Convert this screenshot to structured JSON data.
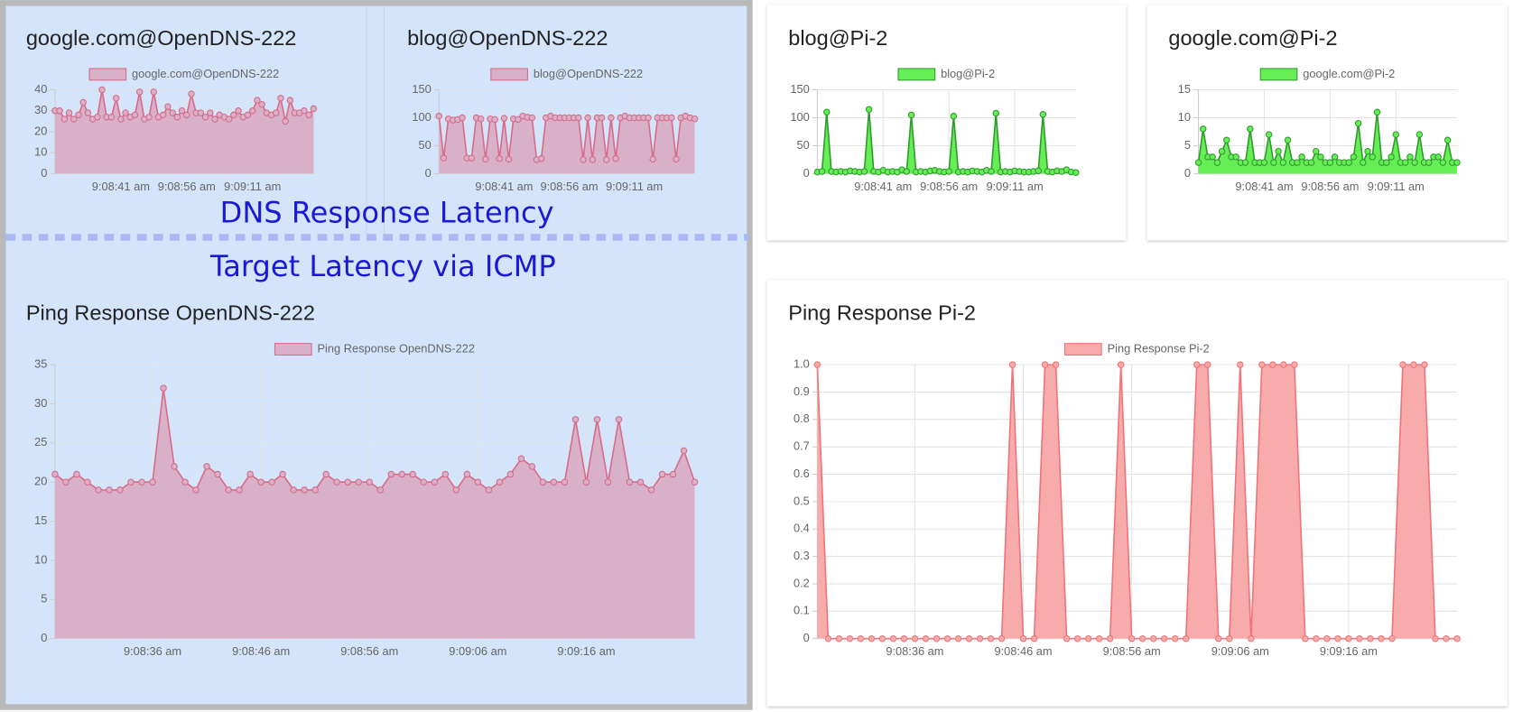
{
  "annotations": [
    "DNS Response Latency",
    "Target Latency via ICMP"
  ],
  "chart_data": [
    {
      "type": "line",
      "title": "google.com@OpenDNS-222",
      "grid": true,
      "categories": [
        null,
        null,
        null,
        null,
        null,
        null,
        null,
        null,
        null,
        null,
        null,
        null,
        null,
        null,
        "9:08:41 am",
        null,
        null,
        null,
        null,
        null,
        null,
        null,
        null,
        null,
        null,
        null,
        null,
        null,
        "9:08:56 am",
        null,
        null,
        null,
        null,
        null,
        null,
        null,
        null,
        null,
        null,
        null,
        null,
        null,
        "9:09:11 am",
        null,
        null,
        null,
        null,
        null,
        null,
        null,
        null,
        null,
        null,
        null,
        null,
        null
      ],
      "series": [
        {
          "name": "google.com@OpenDNS-222",
          "color": "#d96b88",
          "fill": "#d8b0c8",
          "values": [
            30,
            30,
            26,
            29,
            26,
            28,
            34,
            29,
            26,
            27,
            40,
            27,
            27,
            36,
            26,
            29,
            27,
            28,
            39,
            26,
            27,
            39,
            27,
            28,
            32,
            29,
            27,
            30,
            28,
            38,
            29,
            29,
            27,
            29,
            26,
            28,
            27,
            26,
            28,
            30,
            27,
            28,
            30,
            35,
            33,
            29,
            28,
            29,
            36,
            25,
            35,
            29,
            29,
            30,
            28,
            31
          ]
        }
      ],
      "ylim": [
        0,
        40
      ],
      "yticks": [
        0,
        10,
        20,
        30,
        40
      ]
    },
    {
      "type": "line",
      "title": "blog@OpenDNS-222",
      "grid": true,
      "categories": [
        null,
        null,
        null,
        null,
        null,
        null,
        null,
        null,
        null,
        null,
        null,
        null,
        null,
        null,
        "9:08:41 am",
        null,
        null,
        null,
        null,
        null,
        null,
        null,
        null,
        null,
        null,
        null,
        null,
        null,
        "9:08:56 am",
        null,
        null,
        null,
        null,
        null,
        null,
        null,
        null,
        null,
        null,
        null,
        null,
        null,
        "9:09:11 am",
        null,
        null,
        null,
        null,
        null,
        null,
        null,
        null,
        null,
        null,
        null,
        null,
        null
      ],
      "series": [
        {
          "name": "blog@OpenDNS-222",
          "color": "#d96b88",
          "fill": "#d8b0c8",
          "values": [
            103,
            28,
            98,
            96,
            97,
            100,
            28,
            28,
            100,
            98,
            26,
            98,
            97,
            27,
            99,
            26,
            98,
            97,
            103,
            101,
            100,
            25,
            27,
            100,
            103,
            100,
            100,
            100,
            100,
            100,
            100,
            25,
            100,
            25,
            100,
            100,
            25,
            100,
            27,
            100,
            103,
            100,
            100,
            100,
            100,
            100,
            26,
            100,
            100,
            100,
            100,
            26,
            100,
            103,
            100,
            98
          ]
        }
      ],
      "ylim": [
        0,
        150
      ],
      "yticks": [
        0,
        50,
        100,
        150
      ]
    },
    {
      "type": "line",
      "title": "blog@Pi-2",
      "grid": true,
      "categories": [
        null,
        null,
        null,
        null,
        null,
        null,
        null,
        null,
        null,
        null,
        null,
        null,
        null,
        null,
        "9:08:41 am",
        null,
        null,
        null,
        null,
        null,
        null,
        null,
        null,
        null,
        null,
        null,
        null,
        null,
        "9:08:56 am",
        null,
        null,
        null,
        null,
        null,
        null,
        null,
        null,
        null,
        null,
        null,
        null,
        null,
        "9:09:11 am",
        null,
        null,
        null,
        null,
        null,
        null,
        null,
        null,
        null,
        null,
        null,
        null,
        null
      ],
      "series": [
        {
          "name": "blog@Pi-2",
          "color": "#2f9a2f",
          "fill": "#66ee55",
          "values": [
            3,
            4,
            110,
            4,
            3,
            4,
            3,
            5,
            4,
            3,
            4,
            115,
            4,
            3,
            6,
            3,
            4,
            3,
            7,
            4,
            105,
            3,
            4,
            3,
            5,
            6,
            4,
            3,
            4,
            103,
            3,
            4,
            3,
            5,
            4,
            3,
            6,
            4,
            108,
            3,
            4,
            3,
            5,
            4,
            3,
            3,
            4,
            5,
            106,
            4,
            3,
            5,
            4,
            7,
            3,
            2
          ]
        }
      ],
      "ylim": [
        0,
        150
      ],
      "yticks": [
        0,
        50,
        100,
        150
      ]
    },
    {
      "type": "line",
      "title": "google.com@Pi-2",
      "grid": true,
      "categories": [
        null,
        null,
        null,
        null,
        null,
        null,
        null,
        null,
        null,
        null,
        null,
        null,
        null,
        null,
        "9:08:41 am",
        null,
        null,
        null,
        null,
        null,
        null,
        null,
        null,
        null,
        null,
        null,
        null,
        null,
        "9:08:56 am",
        null,
        null,
        null,
        null,
        null,
        null,
        null,
        null,
        null,
        null,
        null,
        null,
        null,
        "9:09:11 am",
        null,
        null,
        null,
        null,
        null,
        null,
        null,
        null,
        null,
        null,
        null,
        null,
        null
      ],
      "series": [
        {
          "name": "google.com@Pi-2",
          "color": "#2f9a2f",
          "fill": "#66ee55",
          "values": [
            2,
            8,
            3,
            3,
            2,
            4,
            6,
            3,
            3,
            2,
            2,
            8,
            2,
            2,
            2,
            7,
            2,
            4,
            2,
            6,
            2,
            2,
            3,
            2,
            2,
            4,
            3,
            2,
            2,
            3,
            2,
            2,
            2,
            3,
            9,
            2,
            4,
            3,
            11,
            2,
            2,
            3,
            7,
            2,
            2,
            3,
            2,
            7,
            2,
            2,
            3,
            3,
            2,
            6,
            2,
            2
          ]
        }
      ],
      "ylim": [
        0,
        15
      ],
      "yticks": [
        0,
        5,
        10,
        15
      ]
    },
    {
      "type": "line",
      "title": "Ping Response OpenDNS-222",
      "grid": true,
      "categories": [
        null,
        null,
        null,
        null,
        null,
        null,
        null,
        null,
        null,
        "9:08:36 am",
        null,
        null,
        null,
        null,
        null,
        null,
        null,
        null,
        null,
        "9:08:46 am",
        null,
        null,
        null,
        null,
        null,
        null,
        null,
        null,
        null,
        "9:08:56 am",
        null,
        null,
        null,
        null,
        null,
        null,
        null,
        null,
        null,
        "9:09:06 am",
        null,
        null,
        null,
        null,
        null,
        null,
        null,
        null,
        null,
        "9:09:16 am",
        null,
        null,
        null,
        null,
        null,
        null,
        null,
        null,
        null,
        null
      ],
      "series": [
        {
          "name": "Ping Response OpenDNS-222",
          "color": "#d96b88",
          "fill": "#d8b0c8",
          "values": [
            21,
            20,
            21,
            20,
            19,
            19,
            19,
            20,
            20,
            20,
            32,
            22,
            20,
            19,
            22,
            21,
            19,
            19,
            21,
            20,
            20,
            21,
            19,
            19,
            19,
            21,
            20,
            20,
            20,
            20,
            19,
            21,
            21,
            21,
            20,
            20,
            21,
            19,
            21,
            20,
            19,
            20,
            21,
            23,
            22,
            20,
            20,
            20,
            28,
            20,
            28,
            20,
            28,
            20,
            20,
            19,
            21,
            21,
            24,
            20
          ]
        }
      ],
      "ylim": [
        0,
        35
      ],
      "yticks": [
        0,
        5,
        10,
        15,
        20,
        25,
        30,
        35
      ]
    },
    {
      "type": "line",
      "title": "Ping Response Pi-2",
      "grid": true,
      "categories": [
        null,
        null,
        null,
        null,
        null,
        null,
        null,
        null,
        null,
        "9:08:36 am",
        null,
        null,
        null,
        null,
        null,
        null,
        null,
        null,
        null,
        "9:08:46 am",
        null,
        null,
        null,
        null,
        null,
        null,
        null,
        null,
        null,
        "9:08:56 am",
        null,
        null,
        null,
        null,
        null,
        null,
        null,
        null,
        null,
        "9:09:06 am",
        null,
        null,
        null,
        null,
        null,
        null,
        null,
        null,
        null,
        "9:09:16 am",
        null,
        null,
        null,
        null,
        null,
        null,
        null,
        null,
        null,
        null
      ],
      "series": [
        {
          "name": "Ping Response Pi-2",
          "color": "#f07378",
          "fill": "#f7abab",
          "values": [
            1,
            0,
            0,
            0,
            0,
            0,
            0,
            0,
            0,
            0,
            0,
            0,
            0,
            0,
            0,
            0,
            0,
            0,
            1,
            0,
            0,
            1,
            1,
            0,
            0,
            0,
            0,
            0,
            1,
            0,
            0,
            0,
            0,
            0,
            0,
            1,
            1,
            0,
            0,
            1,
            0,
            1,
            1,
            1,
            1,
            0,
            0,
            0,
            0,
            0,
            0,
            0,
            0,
            0,
            1,
            1,
            1,
            0,
            0,
            0
          ]
        }
      ],
      "ylim": [
        0,
        1
      ],
      "yticks": [
        0,
        0.1,
        0.2,
        0.3,
        0.4,
        0.5,
        0.6,
        0.7,
        0.8,
        0.9,
        {
          "value": 1,
          "label": "1.0"
        }
      ]
    }
  ]
}
